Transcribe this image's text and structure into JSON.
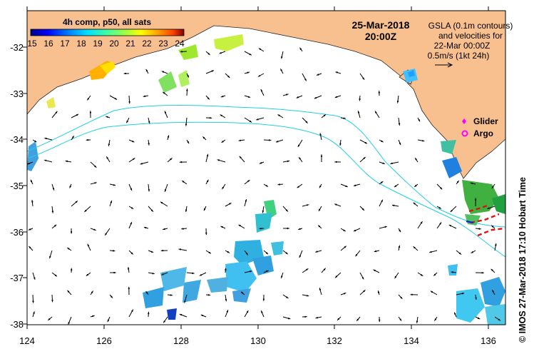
{
  "header": {
    "colorbar_title": "4h comp, p50, all sats",
    "date": "25-Mar-2018",
    "time": "20:00Z"
  },
  "colorbar": {
    "ticks": [
      "15",
      "16",
      "17",
      "18",
      "19",
      "20",
      "21",
      "22",
      "23",
      "24"
    ],
    "colors": [
      "#00007f",
      "#0000ff",
      "#0080ff",
      "#00e0ff",
      "#40ff9f",
      "#a0ff40",
      "#ffff00",
      "#ffa000",
      "#ff4000",
      "#7f0000"
    ]
  },
  "annotation": {
    "lines": [
      "GSLA (0.1m contours)",
      "and velocities for",
      "22-Mar 00:00Z",
      "0.5m/s (1kt 24h)"
    ]
  },
  "legend": {
    "glider_label": "Glider",
    "argo_label": "Argo",
    "glider_color": "#ff00ff",
    "argo_color": "#ff00ff"
  },
  "axes": {
    "lon_ticks": [
      "124",
      "126",
      "128",
      "130",
      "132",
      "134",
      "136"
    ],
    "lat_ticks": [
      "-32",
      "-33",
      "-34",
      "-35",
      "-36",
      "-37",
      "-38"
    ]
  },
  "credit": "© IMOS 27-Mar-2018 17:10 Hobart Time",
  "colors": {
    "land": "#f9c08f",
    "ocean": "#ffffff",
    "contour": "#20d0e0",
    "arrow": "#000000",
    "glider_track": "#e01010"
  }
}
